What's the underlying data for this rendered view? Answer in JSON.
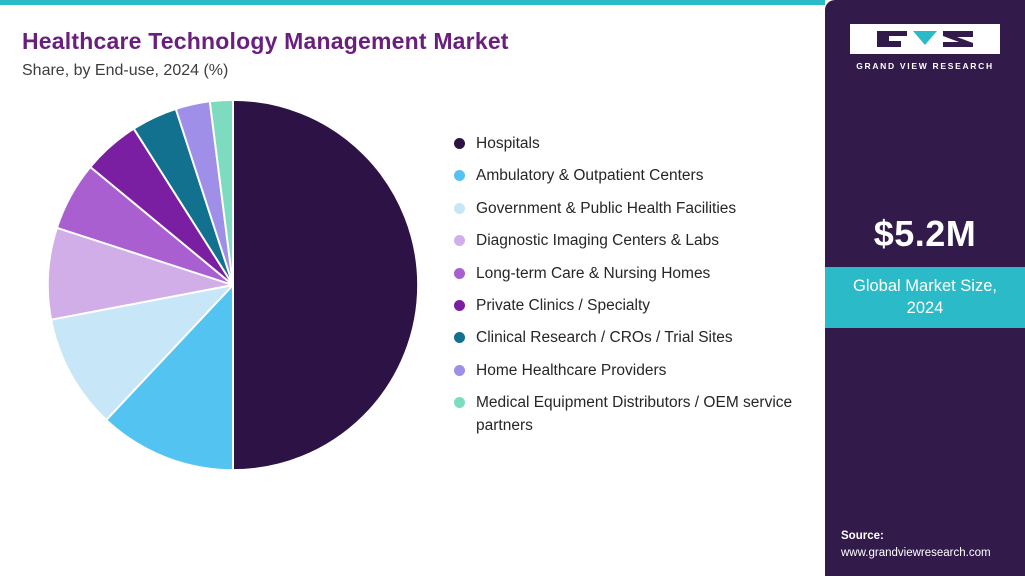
{
  "header": {
    "title": "Healthcare Technology Management Market",
    "subtitle": "Share, by End-use, 2024 (%)"
  },
  "chart_data": {
    "type": "pie",
    "title": "Healthcare Technology Management Market Share, by End-use, 2024 (%)",
    "labels": [
      "Hospitals",
      "Ambulatory & Outpatient Centers",
      "Government & Public Health Facilities",
      "Diagnostic Imaging Centers & Labs",
      "Long-term Care & Nursing Homes",
      "Private Clinics / Specialty",
      "Clinical Research / CROs / Trial Sites",
      "Home Healthcare Providers",
      "Medical Equipment Distributors / OEM service partners"
    ],
    "values": [
      50,
      12,
      10,
      8,
      6,
      5,
      4,
      3,
      2
    ],
    "colors": [
      "#2d1245",
      "#53c4f1",
      "#c7e6f8",
      "#d2aee8",
      "#a95fd0",
      "#7a1fa2",
      "#12718f",
      "#9f8fe8",
      "#7ddcc0"
    ],
    "legend_position": "right",
    "start_angle_deg": 0,
    "direction": "clockwise"
  },
  "sidebar": {
    "logo_icon": "gvr-logo",
    "brand": "GRAND VIEW RESEARCH",
    "market_size": "$5.2M",
    "market_size_label": "Global Market Size, 2024",
    "source_label": "Source:",
    "source_url": "www.grandviewresearch.com"
  },
  "colors": {
    "accent_teal": "#2bbac8",
    "title_purple": "#6a1f7e",
    "sidebar_purple": "#321a4b"
  }
}
